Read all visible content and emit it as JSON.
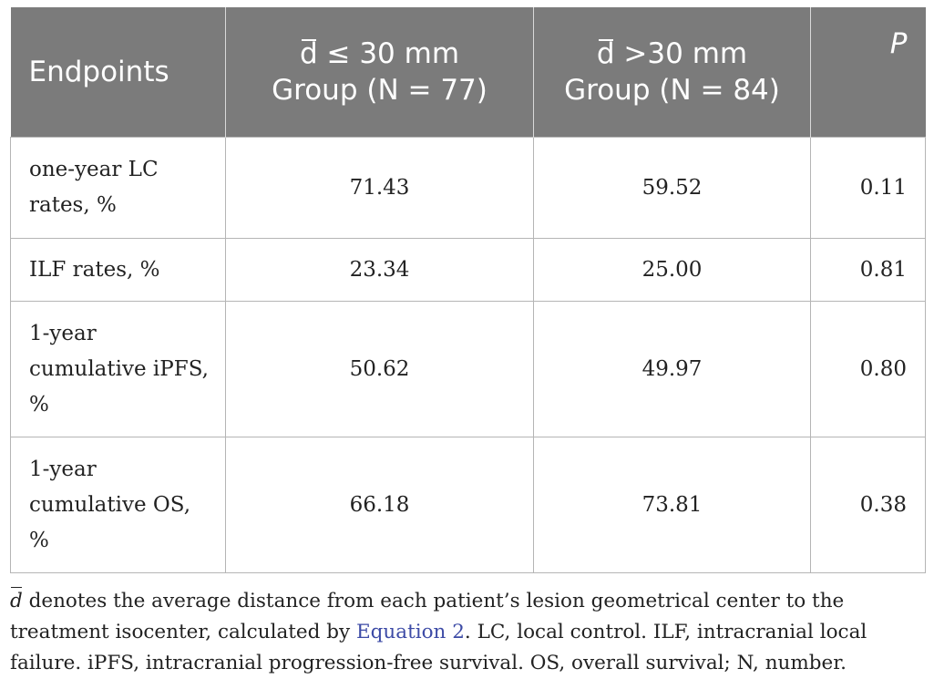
{
  "table": {
    "headers": {
      "endpoints": "Endpoints",
      "group1_d": "d",
      "group1_line1_rest": " ≤ 30 mm",
      "group1_line2": "Group (N = 77)",
      "group2_d": "d",
      "group2_line1_rest": " >30 mm",
      "group2_line2": "Group (N = 84)",
      "p": "P"
    },
    "rows": [
      {
        "endpoint": "one-year LC rates, %",
        "group1": "71.43",
        "group2": "59.52",
        "p": "0.11"
      },
      {
        "endpoint": "ILF rates, %",
        "group1": "23.34",
        "group2": "25.00",
        "p": "0.81"
      },
      {
        "endpoint": "1-year cumulative iPFS, %",
        "group1": "50.62",
        "group2": "49.97",
        "p": "0.80"
      },
      {
        "endpoint": "1-year cumulative OS, %",
        "group1": "66.18",
        "group2": "73.81",
        "p": "0.38"
      }
    ]
  },
  "footnote": {
    "symbol": "d",
    "text_before_link": " denotes the average distance from each patient’s lesion geometrical center to the treatment isocenter, calculated by ",
    "link": "Equation 2",
    "text_after_link": ". LC, local control. ILF, intracranial local failure. iPFS, intracranial progression-free survival. OS, overall survival; N, number."
  },
  "colors": {
    "header_bg": "#7b7b7b",
    "link": "#3d4ba6"
  }
}
